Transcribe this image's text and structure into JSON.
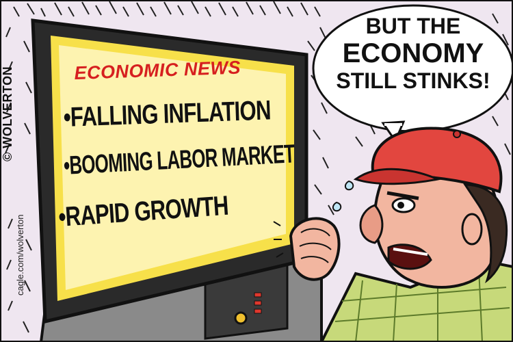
{
  "tv": {
    "headline": "ECONOMIC NEWS",
    "bullets": [
      "•FALLING INFLATION",
      "•BOOMING LABOR MARKET",
      "•RAPID GROWTH"
    ]
  },
  "speech_bubble": {
    "line1": "BUT THE",
    "line2": "ECONOMY",
    "line3": "STILL STINKS!"
  },
  "credit": {
    "artist": "© WOLVERTON",
    "url": "cagle.com/wolverton"
  },
  "colors": {
    "headline_red": "#d61f1f",
    "screen_yellow": "#fdf3b0",
    "screen_glow": "#f7e04a",
    "wall": "#ece3ef",
    "cap_red": "#e2463f",
    "skin": "#f2b6a0",
    "shirt": "#c7d97a"
  }
}
